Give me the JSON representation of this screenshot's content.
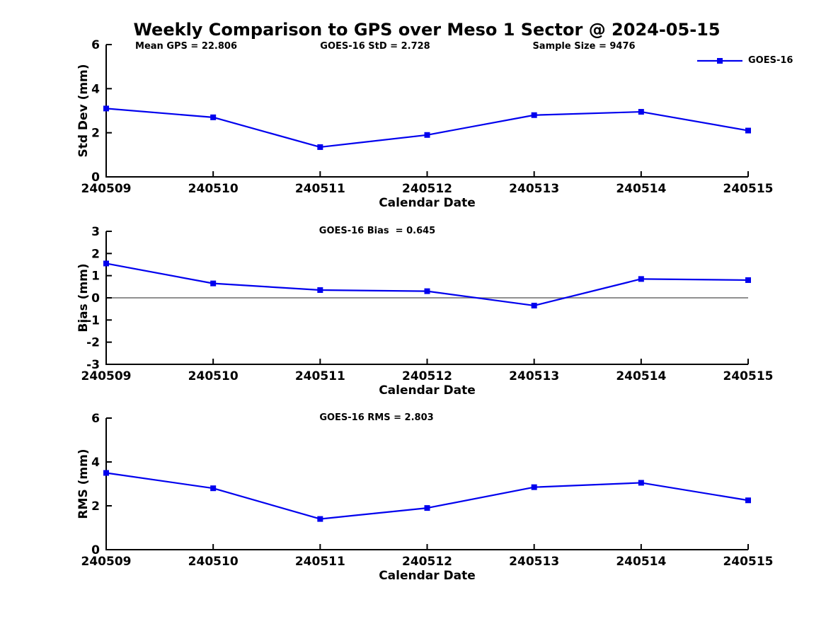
{
  "title": "Weekly Comparison to GPS over Meso 1 Sector @ 2024-05-15",
  "annotations": {
    "mean_gps": "Mean GPS = 22.806",
    "goes_std": "GOES-16 StD = 2.728",
    "sample_size": "Sample Size = 9476",
    "bias": "GOES-16 Bias  = 0.645",
    "rms": "GOES-16 RMS = 2.803"
  },
  "legend": {
    "label": "GOES-16",
    "color": "#0000EE",
    "marker": "square",
    "position": "top-right"
  },
  "colors": {
    "series": "#0000EE",
    "zero_line": "#808080",
    "axis": "#000000",
    "text": "#000000",
    "background": "#FFFFFF"
  },
  "chart_data": [
    {
      "type": "line",
      "panel": "std-dev",
      "xlabel": "Calendar Date",
      "ylabel": "Std Dev (mm)",
      "categories": [
        "240509",
        "240510",
        "240511",
        "240512",
        "240513",
        "240514",
        "240515"
      ],
      "series": [
        {
          "name": "GOES-16",
          "values": [
            3.1,
            2.7,
            1.35,
            1.9,
            2.8,
            2.95,
            2.1
          ]
        }
      ],
      "ylim": [
        0,
        6
      ],
      "yticks": [
        0,
        2,
        4,
        6
      ],
      "grid": false,
      "zero_line": false,
      "legend_position": "top-right"
    },
    {
      "type": "line",
      "panel": "bias",
      "xlabel": "Calendar Date",
      "ylabel": "Bias (mm)",
      "categories": [
        "240509",
        "240510",
        "240511",
        "240512",
        "240513",
        "240514",
        "240515"
      ],
      "series": [
        {
          "name": "GOES-16",
          "values": [
            1.55,
            0.65,
            0.35,
            0.3,
            -0.35,
            0.85,
            0.8
          ]
        }
      ],
      "ylim": [
        -3,
        3
      ],
      "yticks": [
        -3,
        -2,
        -1,
        0,
        1,
        2,
        3
      ],
      "grid": false,
      "zero_line": true,
      "legend_position": "none"
    },
    {
      "type": "line",
      "panel": "rms",
      "xlabel": "Calendar Date",
      "ylabel": "RMS (mm)",
      "categories": [
        "240509",
        "240510",
        "240511",
        "240512",
        "240513",
        "240514",
        "240515"
      ],
      "series": [
        {
          "name": "GOES-16",
          "values": [
            3.5,
            2.8,
            1.4,
            1.9,
            2.85,
            3.05,
            2.25
          ]
        }
      ],
      "ylim": [
        0,
        6
      ],
      "yticks": [
        0,
        2,
        4,
        6
      ],
      "grid": false,
      "zero_line": false,
      "legend_position": "none"
    }
  ]
}
